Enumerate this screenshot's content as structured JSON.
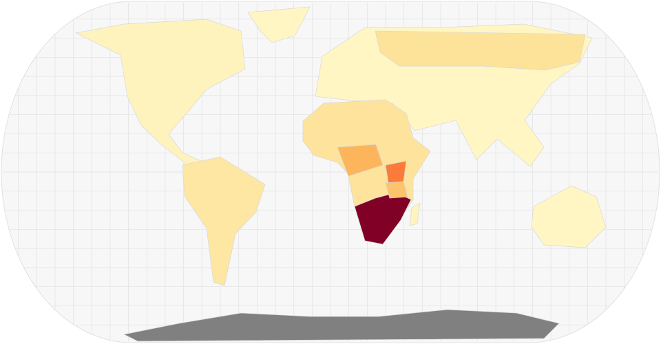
{
  "map": {
    "ocean_color": "#f7f7f7",
    "graticule_color": "#e2e2e2",
    "regions": [
      {
        "color": "#fff6c4"
      },
      {
        "color": "#fff3bd"
      },
      {
        "color": "#fde7a3"
      },
      {
        "color": "#fff6c4"
      },
      {
        "color": "#fde39a"
      },
      {
        "color": "#fde39c"
      },
      {
        "color": "#800026"
      },
      {
        "color": "#fd7b3a"
      },
      {
        "color": "#fdb55c"
      },
      {
        "color": "#fdc46c"
      },
      {
        "color": "#fff4c0"
      },
      {
        "color": "#fff6c4"
      },
      {
        "color": "#808080"
      }
    ]
  }
}
